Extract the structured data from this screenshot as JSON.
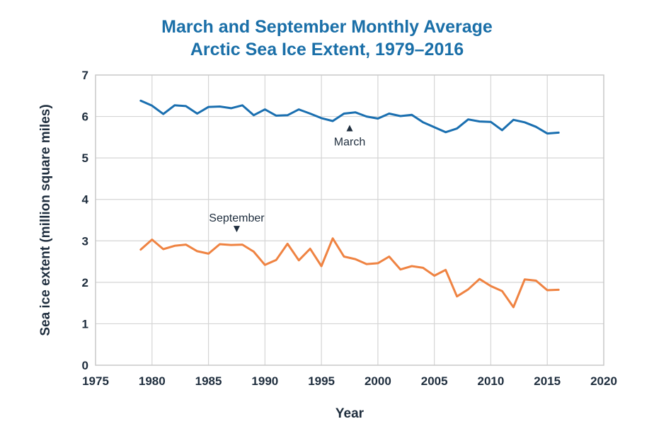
{
  "chart_data": {
    "type": "line",
    "title_line1": "March and September Monthly Average",
    "title_line2": "Arctic Sea Ice Extent, 1979–2016",
    "xlabel": "Year",
    "ylabel": "Sea ice extent (million square miles)",
    "xlim": [
      1975,
      2020
    ],
    "ylim": [
      0,
      7
    ],
    "xticks": [
      1975,
      1980,
      1985,
      1990,
      1995,
      2000,
      2005,
      2010,
      2015,
      2020
    ],
    "yticks": [
      0,
      1,
      2,
      3,
      4,
      5,
      6,
      7
    ],
    "grid": true,
    "x": [
      1979,
      1980,
      1981,
      1982,
      1983,
      1984,
      1985,
      1986,
      1987,
      1988,
      1989,
      1990,
      1991,
      1992,
      1993,
      1994,
      1995,
      1996,
      1997,
      1998,
      1999,
      2000,
      2001,
      2002,
      2003,
      2004,
      2005,
      2006,
      2007,
      2008,
      2009,
      2010,
      2011,
      2012,
      2013,
      2014,
      2015,
      2016
    ],
    "series": [
      {
        "name": "March",
        "color": "#1a6fb0",
        "values": [
          6.38,
          6.26,
          6.06,
          6.27,
          6.25,
          6.07,
          6.23,
          6.24,
          6.2,
          6.27,
          6.03,
          6.17,
          6.02,
          6.03,
          6.17,
          6.07,
          5.96,
          5.89,
          6.07,
          6.1,
          6.0,
          5.95,
          6.07,
          6.01,
          6.04,
          5.86,
          5.74,
          5.62,
          5.71,
          5.93,
          5.88,
          5.87,
          5.67,
          5.92,
          5.86,
          5.75,
          5.59,
          5.61
        ]
      },
      {
        "name": "September",
        "color": "#ef8342",
        "values": [
          2.79,
          3.03,
          2.8,
          2.88,
          2.91,
          2.75,
          2.69,
          2.92,
          2.9,
          2.91,
          2.74,
          2.42,
          2.54,
          2.93,
          2.53,
          2.81,
          2.39,
          3.06,
          2.62,
          2.56,
          2.44,
          2.46,
          2.62,
          2.31,
          2.39,
          2.35,
          2.16,
          2.3,
          1.66,
          1.83,
          2.08,
          1.91,
          1.79,
          1.4,
          2.07,
          2.04,
          1.81,
          1.82
        ]
      }
    ],
    "annotations": [
      {
        "text": "March",
        "series": "March",
        "x": 1997.5,
        "arrow": "up"
      },
      {
        "text": "September",
        "series": "September",
        "x": 1987.5,
        "arrow": "down"
      }
    ]
  }
}
